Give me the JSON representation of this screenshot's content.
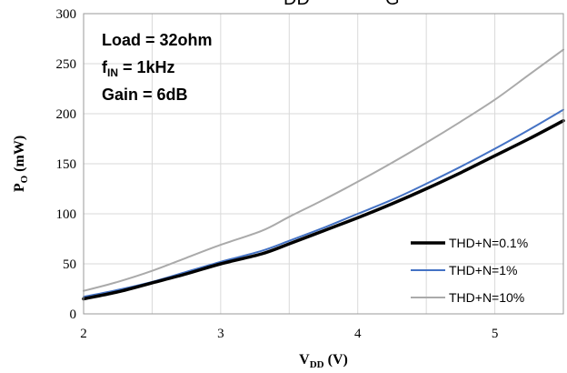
{
  "chart_data": {
    "type": "line",
    "title_fragments": [
      "DD",
      "G"
    ],
    "xlabel": {
      "main": "V",
      "sub": "DD",
      "unit": " (V)"
    },
    "ylabel": {
      "main": "P",
      "sub": "O",
      "unit": " (mW)"
    },
    "xlim": [
      2,
      5.5
    ],
    "ylim": [
      0,
      300
    ],
    "xticks": [
      2,
      3,
      4,
      5
    ],
    "yticks": [
      0,
      50,
      100,
      150,
      200,
      250,
      300
    ],
    "grid": true,
    "legend_position": "bottom-right",
    "annotations": [
      {
        "main": "Load = 32ohm",
        "sub": "",
        "rest": ""
      },
      {
        "main": "f",
        "sub": "IN",
        "rest": " = 1kHz"
      },
      {
        "main": "Gain = 6dB",
        "sub": "",
        "rest": ""
      }
    ],
    "series": [
      {
        "name": "THD+N=0.1%",
        "color": "#000000",
        "x": [
          2.0,
          2.25,
          2.5,
          2.75,
          3.0,
          3.3,
          3.5,
          3.75,
          4.0,
          4.25,
          4.5,
          4.75,
          5.0,
          5.25,
          5.5
        ],
        "y": [
          15,
          22,
          31,
          40,
          50,
          60,
          70,
          83,
          96,
          110,
          125,
          141,
          158,
          175,
          193
        ]
      },
      {
        "name": "THD+N=1%",
        "color": "#4472c4",
        "x": [
          2.0,
          2.25,
          2.5,
          2.75,
          3.0,
          3.3,
          3.5,
          3.75,
          4.0,
          4.25,
          4.5,
          4.75,
          5.0,
          5.25,
          5.5
        ],
        "y": [
          17,
          24,
          32,
          42,
          52,
          63,
          73,
          86,
          100,
          114,
          130,
          147,
          165,
          184,
          204
        ]
      },
      {
        "name": "THD+N=10%",
        "color": "#aaaaaa",
        "x": [
          2.0,
          2.25,
          2.5,
          2.75,
          3.0,
          3.3,
          3.5,
          3.75,
          4.0,
          4.25,
          4.5,
          4.75,
          5.0,
          5.25,
          5.5
        ],
        "y": [
          23,
          32,
          43,
          56,
          69,
          83,
          97,
          114,
          132,
          151,
          171,
          192,
          214,
          239,
          264
        ]
      }
    ]
  }
}
